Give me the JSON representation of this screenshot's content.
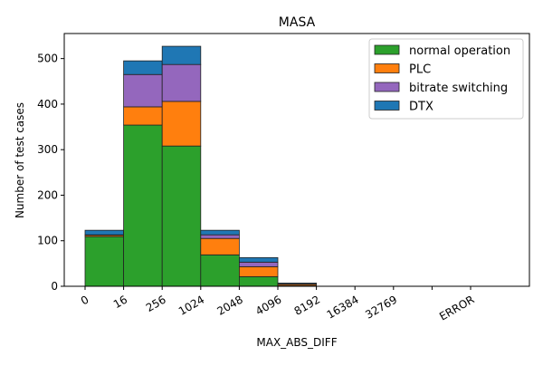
{
  "chart_data": {
    "type": "bar",
    "stacked": true,
    "title": "MASA",
    "xlabel": "MAX_ABS_DIFF",
    "ylabel": "Number of test cases",
    "ylim": [
      0,
      555
    ],
    "yticks": [
      0,
      100,
      200,
      300,
      400,
      500
    ],
    "xtick_labels": [
      "0",
      "16",
      "256",
      "1024",
      "2048",
      "4096",
      "8192",
      "16384",
      "32769",
      "",
      "ERROR"
    ],
    "legend_position": "top-right",
    "bins": [
      "0-16",
      "16-256",
      "256-1024",
      "1024-2048",
      "2048-4096",
      "4096-8192"
    ],
    "series": [
      {
        "name": "normal operation",
        "color": "#2ca02c",
        "values": [
          109,
          354,
          308,
          69,
          21,
          1
        ]
      },
      {
        "name": "PLC",
        "color": "#ff7f0e",
        "values": [
          3,
          40,
          98,
          36,
          22,
          3
        ]
      },
      {
        "name": "bitrate switching",
        "color": "#9467bd",
        "values": [
          1,
          71,
          81,
          8,
          10,
          1
        ]
      },
      {
        "name": "DTX",
        "color": "#1f77b4",
        "values": [
          10,
          30,
          40,
          10,
          10,
          2
        ]
      }
    ]
  }
}
